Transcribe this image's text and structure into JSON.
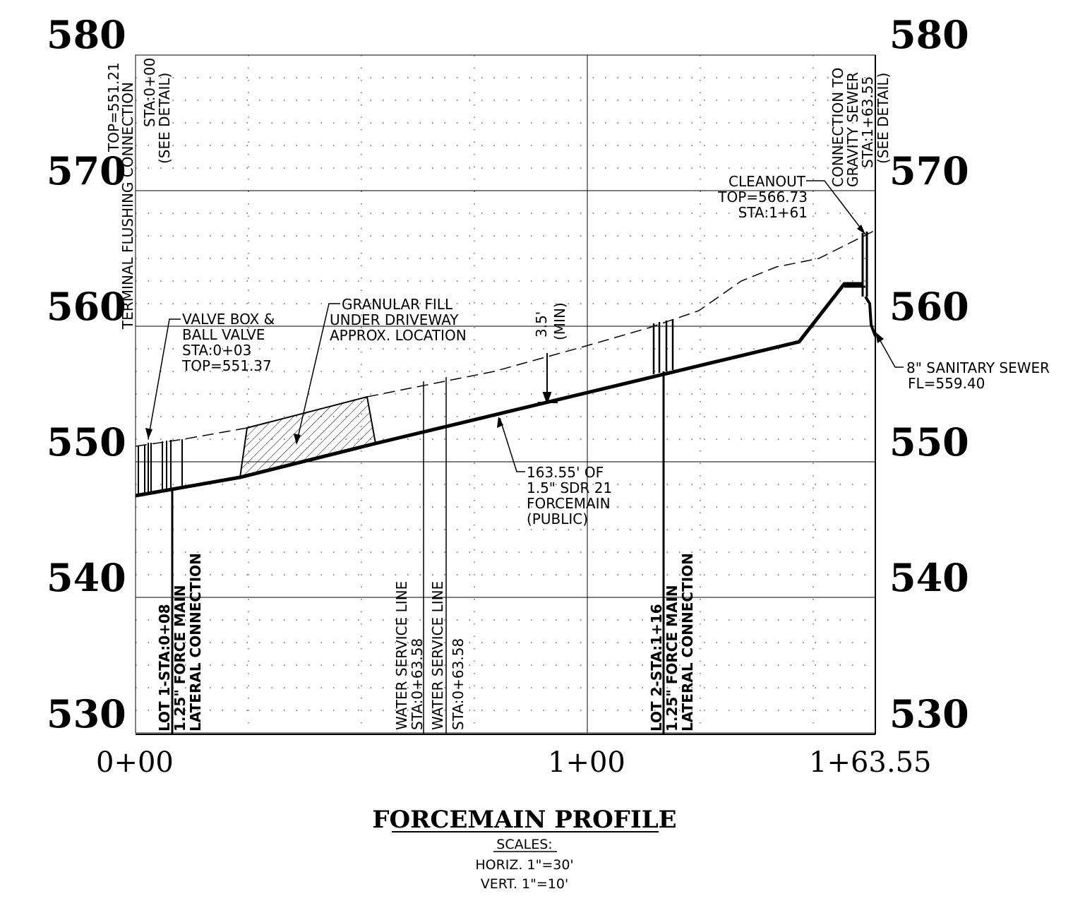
{
  "elevations": [
    "580",
    "570",
    "560",
    "550",
    "540",
    "530"
  ],
  "stations": [
    "0+00",
    "1+00",
    "1+63.55"
  ],
  "labels": {
    "terminal_flushing": [
      "TERMINAL FLUSHING CONNECTION",
      "TOP=551.21",
      "STA:0+00",
      "(SEE DETAIL)"
    ],
    "valve_box": [
      "VALVE BOX &",
      "BALL VALVE",
      "STA:0+03",
      "TOP=551.37"
    ],
    "granular_fill": [
      "GRANULAR FILL",
      "UNDER DRIVEWAY",
      "APPROX. LOCATION"
    ],
    "min_cover": [
      "3.5'",
      "(MIN)"
    ],
    "cleanout": [
      "CLEANOUT",
      "TOP=566.73",
      "STA:1+61"
    ],
    "gravity_connection": [
      "CONNECTION TO",
      "GRAVITY SEWER",
      "STA:1+63.55",
      "(SEE DETAIL)"
    ],
    "sanitary_sewer": [
      "8\" SANITARY SEWER",
      "FL=559.40"
    ],
    "forcemain_callout": [
      "163.55' OF",
      "1.5\" SDR 21",
      "FORCEMAIN",
      "(PUBLIC)"
    ],
    "lot1": [
      "LOT 1-STA:0+08",
      "1.25\" FORCE MAIN",
      "LATERAL CONNECTION"
    ],
    "water_service_1": [
      "WATER SERVICE LINE",
      "STA:0+63.58"
    ],
    "water_service_2": [
      "WATER SERVICE LINE",
      "STA:0+63.58"
    ],
    "lot2": [
      "LOT 2-STA:1+16",
      "1.25\" FORCE MAIN",
      "LATERAL CONNECTION"
    ]
  },
  "title": "FORCEMAIN PROFILE",
  "scales": {
    "heading": "SCALES:",
    "horiz": "HORIZ. 1\"=30'",
    "vert": "VERT. 1\"=10'"
  }
}
